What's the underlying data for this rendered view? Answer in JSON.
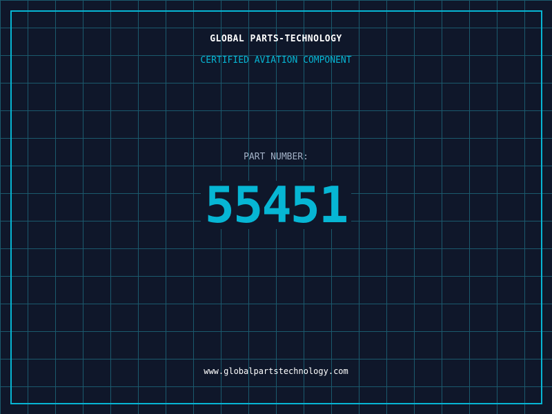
{
  "header": {
    "brand": "GLOBAL PARTS-TECHNOLOGY",
    "subtitle": "CERTIFIED AVIATION COMPONENT"
  },
  "part": {
    "label": "PART NUMBER:",
    "number": "55451"
  },
  "footer": {
    "url": "www.globalpartstechnology.com"
  },
  "colors": {
    "background": "#0f172a",
    "accent": "#06b6d4",
    "grid": "#1b5a6e"
  }
}
